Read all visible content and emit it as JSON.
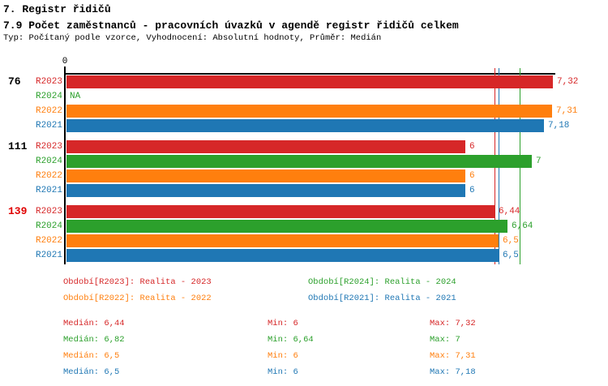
{
  "page": {
    "title1": "7. Registr řidičů",
    "title2": "7.9 Počet zaměstnanců - pracovních úvazků v agendě registr řidičů celkem",
    "subtitle": "Typ: Počítaný podle vzorce, Vyhodnocení: Absolutní hodnoty, Průměr: Medián"
  },
  "colors": {
    "R2023": "#d62728",
    "R2024": "#2ca02c",
    "R2022": "#ff7f0e",
    "R2021": "#1f77b4",
    "highlight_group": "#e00000",
    "axis": "#000000"
  },
  "chart_data": {
    "type": "bar",
    "orientation": "horizontal",
    "x_axis": {
      "min": 0,
      "max": 7.32,
      "tick_label": "0",
      "grid": false
    },
    "series_order": [
      "R2023",
      "R2024",
      "R2022",
      "R2021"
    ],
    "groups": [
      {
        "label": "76",
        "highlighted": false,
        "bars": [
          {
            "series": "R2023",
            "value": 7.32,
            "display": "7,32"
          },
          {
            "series": "R2024",
            "value": null,
            "display": "NA"
          },
          {
            "series": "R2022",
            "value": 7.31,
            "display": "7,31"
          },
          {
            "series": "R2021",
            "value": 7.18,
            "display": "7,18"
          }
        ]
      },
      {
        "label": "111",
        "highlighted": false,
        "bars": [
          {
            "series": "R2023",
            "value": 6,
            "display": "6"
          },
          {
            "series": "R2024",
            "value": 7,
            "display": "7"
          },
          {
            "series": "R2022",
            "value": 6,
            "display": "6"
          },
          {
            "series": "R2021",
            "value": 6,
            "display": "6"
          }
        ]
      },
      {
        "label": "139",
        "highlighted": true,
        "bars": [
          {
            "series": "R2023",
            "value": 6.44,
            "display": "6,44"
          },
          {
            "series": "R2024",
            "value": 6.64,
            "display": "6,64"
          },
          {
            "series": "R2022",
            "value": 6.5,
            "display": "6,5"
          },
          {
            "series": "R2021",
            "value": 6.5,
            "display": "6,5"
          }
        ]
      }
    ],
    "median_lines": [
      {
        "series": "R2022",
        "value": 6.5
      },
      {
        "series": "R2021",
        "value": 6.5
      },
      {
        "series": "R2023",
        "value": 6.44
      },
      {
        "series": "R2024",
        "value": 6.82
      }
    ]
  },
  "legend": [
    {
      "series": "R2023",
      "label": "Období[R2023]: Realita - 2023"
    },
    {
      "series": "R2024",
      "label": "Období[R2024]: Realita - 2024"
    },
    {
      "series": "R2022",
      "label": "Období[R2022]: Realita - 2022"
    },
    {
      "series": "R2021",
      "label": "Období[R2021]: Realita - 2021"
    }
  ],
  "stats": [
    {
      "series": "R2023",
      "median": "Medián: 6,44",
      "min": "Min: 6",
      "max": "Max: 7,32"
    },
    {
      "series": "R2024",
      "median": "Medián: 6,82",
      "min": "Min: 6,64",
      "max": "Max: 7"
    },
    {
      "series": "R2022",
      "median": "Medián: 6,5",
      "min": "Min: 6",
      "max": "Max: 7,31"
    },
    {
      "series": "R2021",
      "median": "Medián: 6,5",
      "min": "Min: 6",
      "max": "Max: 7,18"
    }
  ]
}
